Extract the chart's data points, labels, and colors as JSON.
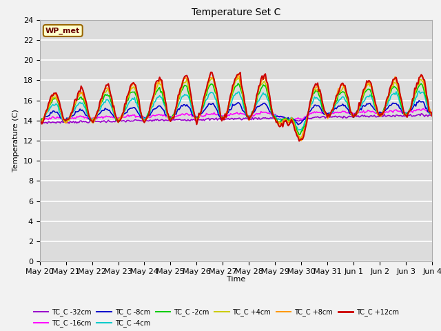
{
  "title": "Temperature Set C",
  "xlabel": "Time",
  "ylabel": "Temperature (C)",
  "ylim": [
    0,
    24
  ],
  "yticks": [
    0,
    2,
    4,
    6,
    8,
    10,
    12,
    14,
    16,
    18,
    20,
    22,
    24
  ],
  "x_labels": [
    "May 20",
    "May 21",
    "May 22",
    "May 23",
    "May 24",
    "May 25",
    "May 26",
    "May 27",
    "May 28",
    "May 29",
    "May 30",
    "May 31",
    "Jun 1",
    "Jun 2",
    "Jun 3",
    "Jun 4"
  ],
  "bg_color": "#dcdcdc",
  "plot_bg": "#dcdcdc",
  "wp_met_label": "WP_met",
  "series_order": [
    "TC_C -32cm",
    "TC_C -16cm",
    "TC_C -8cm",
    "TC_C -4cm",
    "TC_C -2cm",
    "TC_C +4cm",
    "TC_C +8cm",
    "TC_C +12cm"
  ],
  "series": {
    "TC_C -32cm": {
      "color": "#9900cc",
      "lw": 1.2
    },
    "TC_C -16cm": {
      "color": "#ff00ff",
      "lw": 1.2
    },
    "TC_C -8cm": {
      "color": "#0000cc",
      "lw": 1.2
    },
    "TC_C -4cm": {
      "color": "#00cccc",
      "lw": 1.2
    },
    "TC_C -2cm": {
      "color": "#00cc00",
      "lw": 1.2
    },
    "TC_C +4cm": {
      "color": "#cccc00",
      "lw": 1.2
    },
    "TC_C +8cm": {
      "color": "#ff9900",
      "lw": 1.2
    },
    "TC_C +12cm": {
      "color": "#cc0000",
      "lw": 1.5
    }
  },
  "n_days": 15,
  "pts_per_day": 24
}
